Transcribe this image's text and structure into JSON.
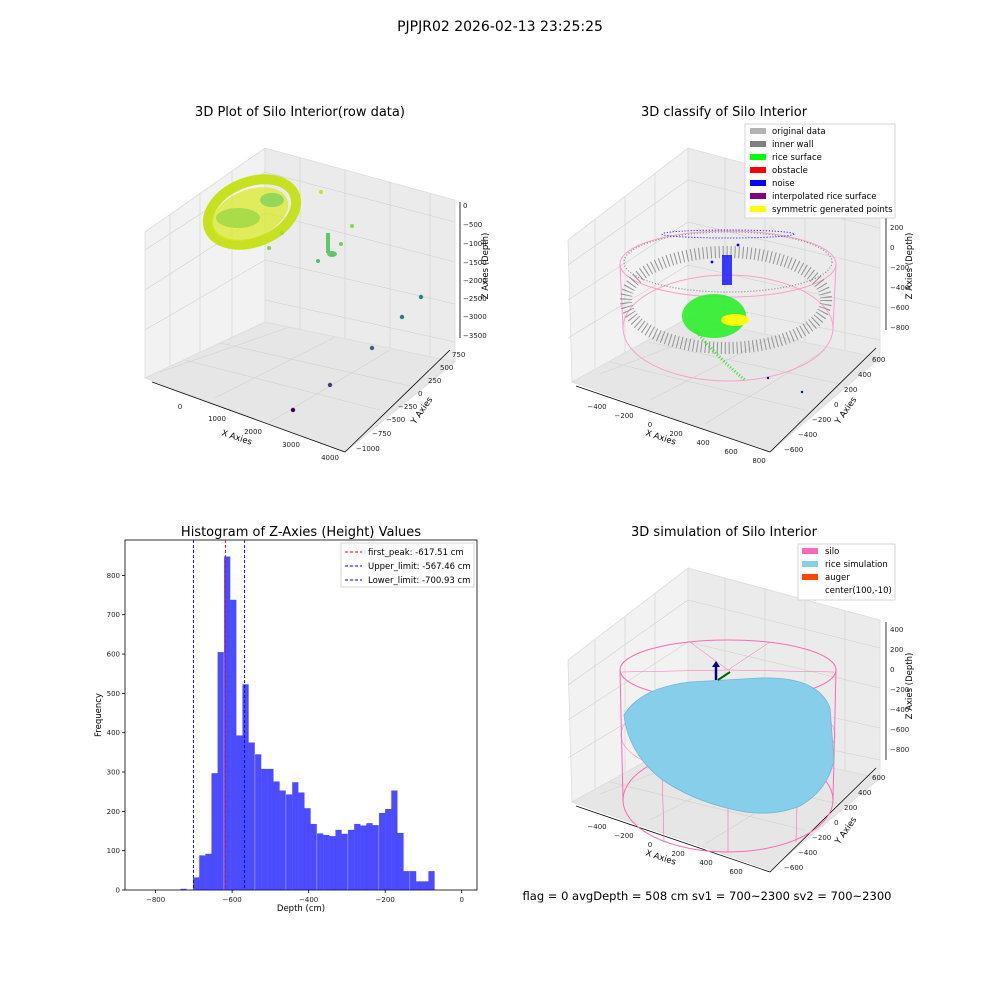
{
  "figure_title": "PJPJR02 2026-02-13 23:25:25",
  "footer_text": "flag = 0     avgDepth = 508 cm  sv1 = 700~2300  sv2 = 700~2300",
  "panels": {
    "raw": {
      "title": "3D Plot of Silo Interior(row data)",
      "xlabel": "X Axies",
      "ylabel": "Y Axies",
      "zlabel": "Z Axies (Depth)",
      "xticks": [
        "0",
        "1000",
        "2000",
        "3000",
        "4000"
      ],
      "yticks": [
        "750",
        "500",
        "250",
        "0",
        "−250",
        "−500",
        "−750",
        "−1000"
      ],
      "zticks": [
        "0",
        "−500",
        "−1000",
        "−1500",
        "−2000",
        "−2500",
        "−3000",
        "−3500"
      ]
    },
    "classify": {
      "title": "3D classify of Silo Interior",
      "xlabel": "X Axies",
      "ylabel": "Y Axies",
      "zlabel": "Z Axies (Depth)",
      "xticks": [
        "−400",
        "−200",
        "0",
        "200",
        "400",
        "600",
        "800"
      ],
      "yticks": [
        "600",
        "400",
        "200",
        "0",
        "−200",
        "−400",
        "−600"
      ],
      "zticks": [
        "200",
        "0",
        "−200",
        "−400",
        "−600",
        "−800"
      ],
      "legend": [
        {
          "label": "original data",
          "color": "#b3b3b3"
        },
        {
          "label": "inner wall",
          "color": "#808080"
        },
        {
          "label": "rice surface",
          "color": "#00ff00"
        },
        {
          "label": "obstacle",
          "color": "#ff0000"
        },
        {
          "label": "noise",
          "color": "#0000ff"
        },
        {
          "label": "interpolated rice surface",
          "color": "#800080"
        },
        {
          "label": "symmetric generated points",
          "color": "#ffff00"
        }
      ]
    },
    "simulation": {
      "title": "3D simulation of Silo Interior",
      "xlabel": "X Axies",
      "ylabel": "Y Axies",
      "zlabel": "Z Axies (Depth)",
      "xticks": [
        "−400",
        "−200",
        "0",
        "200",
        "400",
        "600"
      ],
      "yticks": [
        "600",
        "400",
        "200",
        "0",
        "−200",
        "−400",
        "−600"
      ],
      "zticks": [
        "400",
        "200",
        "0",
        "−200",
        "−400",
        "−600",
        "−800"
      ],
      "legend": [
        {
          "label": "silo",
          "color": "#ff69b4"
        },
        {
          "label": "rice simulation",
          "color": "#87ceeb"
        },
        {
          "label": "auger",
          "color": "#ff4500"
        },
        {
          "label": "center(100,-10)",
          "color": ""
        }
      ]
    }
  },
  "chart_data": [
    {
      "type": "bar",
      "title": "Histogram of Z-Axies (Height) Values",
      "xlabel": "Depth (cm)",
      "ylabel": "Frequency",
      "xlim": [
        -880,
        40
      ],
      "ylim": [
        0,
        890
      ],
      "bar_color": "#0000ff",
      "bar_alpha": 0.7,
      "bin_width": 16.2,
      "xticks": [
        -800,
        -600,
        -400,
        -200,
        0
      ],
      "xtick_labels": [
        "−800",
        "−600",
        "−400",
        "−200",
        "0"
      ],
      "yticks": [
        0,
        100,
        200,
        300,
        400,
        500,
        600,
        700,
        800
      ],
      "bins_left": [
        -735,
        -719,
        -702,
        -686,
        -670,
        -654,
        -638,
        -621,
        -605,
        -589,
        -573,
        -557,
        -540,
        -524,
        -508,
        -492,
        -476,
        -459,
        -443,
        -427,
        -411,
        -395,
        -378,
        -362,
        -346,
        -330,
        -314,
        -297,
        -281,
        -265,
        -249,
        -233,
        -216,
        -200,
        -184,
        -168,
        -152,
        -135,
        -119,
        -103,
        -87,
        -71,
        -54,
        -38,
        -22,
        -6
      ],
      "values": [
        3,
        0,
        32,
        88,
        92,
        297,
        605,
        848,
        738,
        393,
        523,
        375,
        345,
        308,
        308,
        276,
        253,
        243,
        274,
        248,
        208,
        168,
        144,
        140,
        137,
        153,
        143,
        153,
        168,
        164,
        170,
        165,
        196,
        206,
        253,
        145,
        48,
        48,
        22,
        22,
        48,
        0,
        0,
        0,
        0,
        0
      ],
      "vlines": [
        {
          "label": "first_peak: -617.51 cm",
          "x": -617.51,
          "color": "#ff0000"
        },
        {
          "label": "Upper_limit: -567.46 cm",
          "x": -567.46,
          "color": "#0000ff"
        },
        {
          "label": "Lower_limit: -700.93 cm",
          "x": -700.93,
          "color": "#0000ff"
        }
      ],
      "legend_position": "top-right"
    }
  ]
}
